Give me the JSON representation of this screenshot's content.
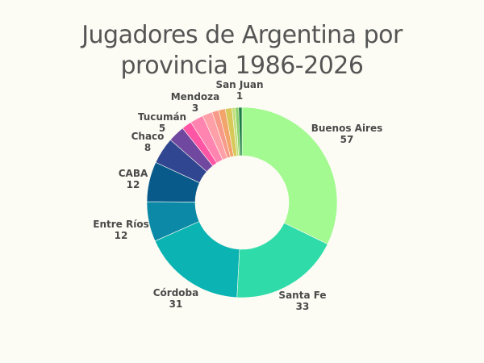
{
  "chart_data": {
    "type": "donut",
    "title": [
      "Jugadores de Argentina por",
      "provincia 1986-2026"
    ],
    "categories": [
      "Buenos Aires",
      "Santa Fe",
      "Córdoba",
      "Entre Ríos",
      "CABA",
      "Chaco",
      "Tucumán",
      "Mendoza",
      "San Juan"
    ],
    "values": [
      57,
      33,
      31,
      12,
      12,
      8,
      5,
      3,
      1
    ],
    "colors": [
      "#a3fa91",
      "#2fdba9",
      "#0bb3b2",
      "#0c89a6",
      "#075a8a",
      "#314690",
      "#7048a0",
      "#ff55a5",
      "#1a7f45"
    ],
    "other_segments": {
      "values": [
        4,
        3,
        2,
        2,
        2,
        1,
        1
      ],
      "colors": [
        "#ff85b0",
        "#ffa0a8",
        "#f79a8a",
        "#f2a46a",
        "#d8c85a",
        "#c3e07d",
        "#8dd36a"
      ]
    },
    "labeled": [
      true,
      true,
      true,
      true,
      true,
      true,
      true,
      true,
      true
    ]
  }
}
